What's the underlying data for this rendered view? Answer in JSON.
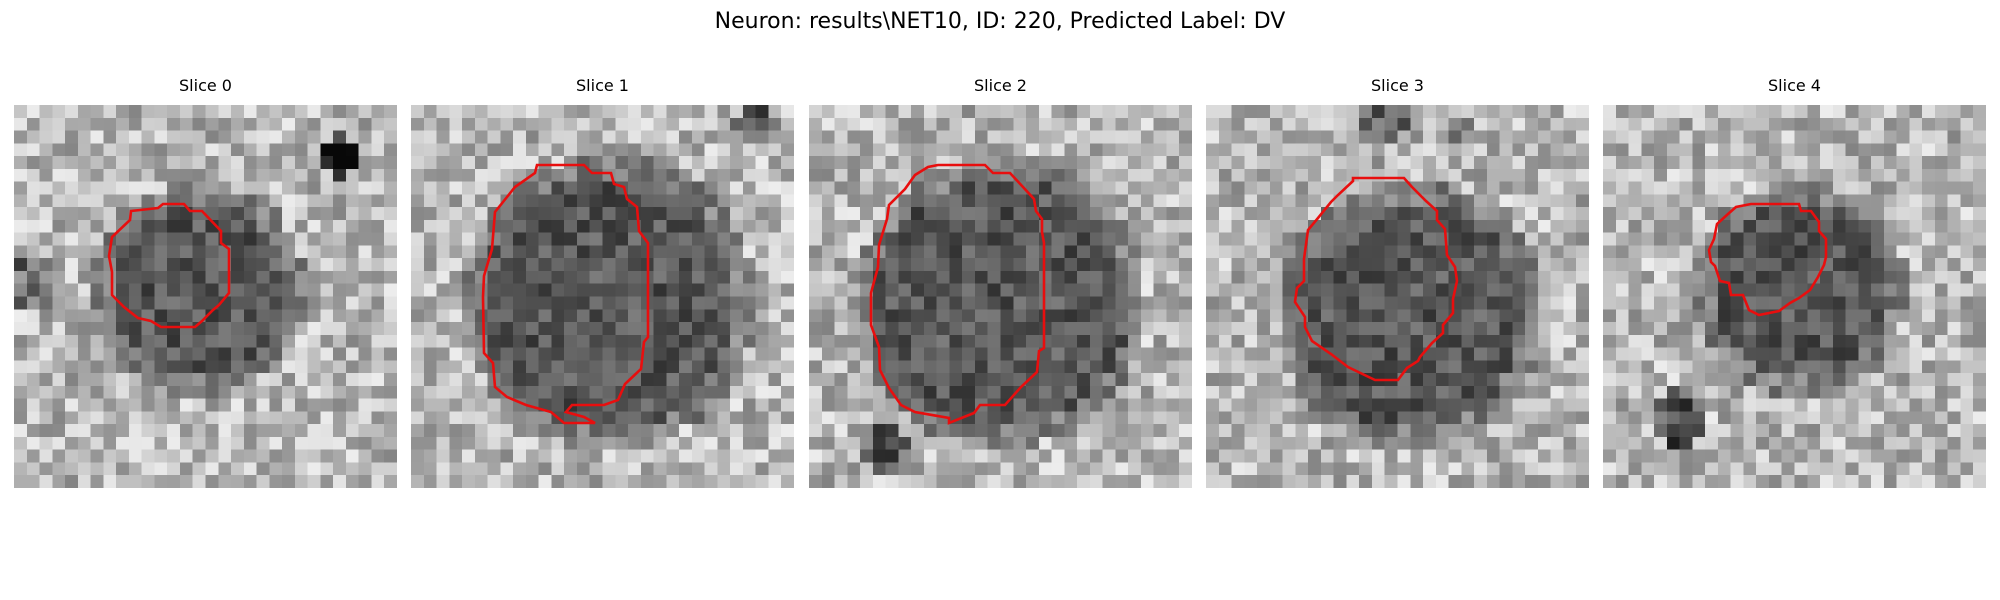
{
  "figure": {
    "title": "Neuron: results\\NET10, ID: 220, Predicted Label: DV",
    "contour_color": "#e80e0e",
    "colormap": "grayscale"
  },
  "panels": [
    {
      "title": "Slice 0"
    },
    {
      "title": "Slice 1"
    },
    {
      "title": "Slice 2"
    },
    {
      "title": "Slice 3"
    },
    {
      "title": "Slice 4"
    }
  ]
}
